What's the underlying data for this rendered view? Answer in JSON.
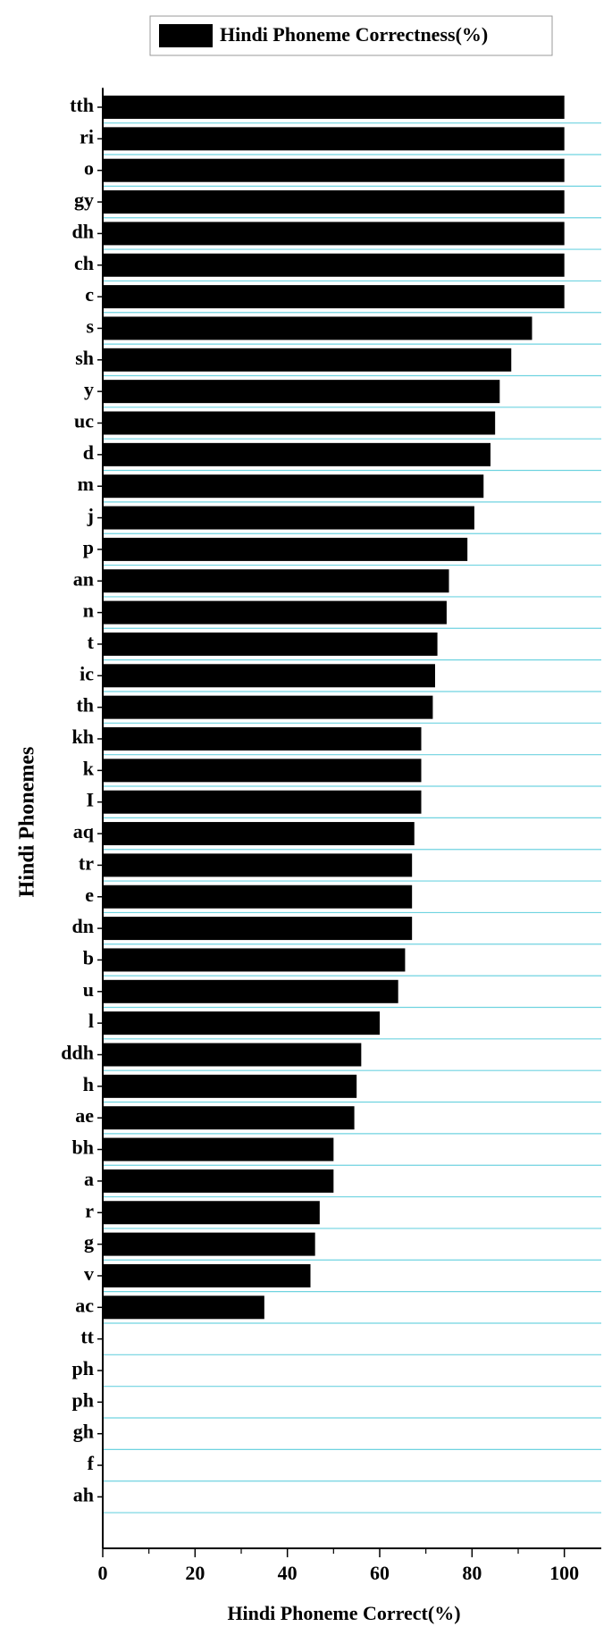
{
  "chart_data": {
    "type": "bar",
    "orientation": "horizontal",
    "legend": "Hindi Phoneme Correctness(%)",
    "xlabel": "Hindi Phoneme Correct(%)",
    "ylabel": "Hindi Phonemes",
    "categories": [
      "tth",
      "ri",
      "o",
      "gy",
      "dh",
      "ch",
      "c",
      "s",
      "sh",
      "y",
      "uc",
      "d",
      "m",
      "j",
      "p",
      "an",
      "n",
      "t",
      "ic",
      "th",
      "kh",
      "k",
      "I",
      "aq",
      "tr",
      "e",
      "dn",
      "b",
      "u",
      "l",
      "ddh",
      "h",
      "ae",
      "bh",
      "a",
      "r",
      "g",
      "v",
      "ac",
      "tt",
      "ph",
      "ph",
      "gh",
      "f",
      "ah"
    ],
    "values": [
      100,
      100,
      100,
      100,
      100,
      100,
      100,
      93,
      88.5,
      86,
      85,
      84,
      82.5,
      80.5,
      79,
      75,
      74.5,
      72.5,
      72,
      71.5,
      69,
      69,
      69,
      67.5,
      67,
      67,
      67,
      65.5,
      64,
      60,
      56,
      55,
      54.5,
      50,
      50,
      47,
      46,
      45,
      35,
      0,
      0,
      0,
      0,
      0,
      0
    ],
    "color": "#000000",
    "xlim": [
      0,
      108
    ],
    "xticks": [
      0,
      20,
      40,
      60,
      80,
      100
    ]
  }
}
